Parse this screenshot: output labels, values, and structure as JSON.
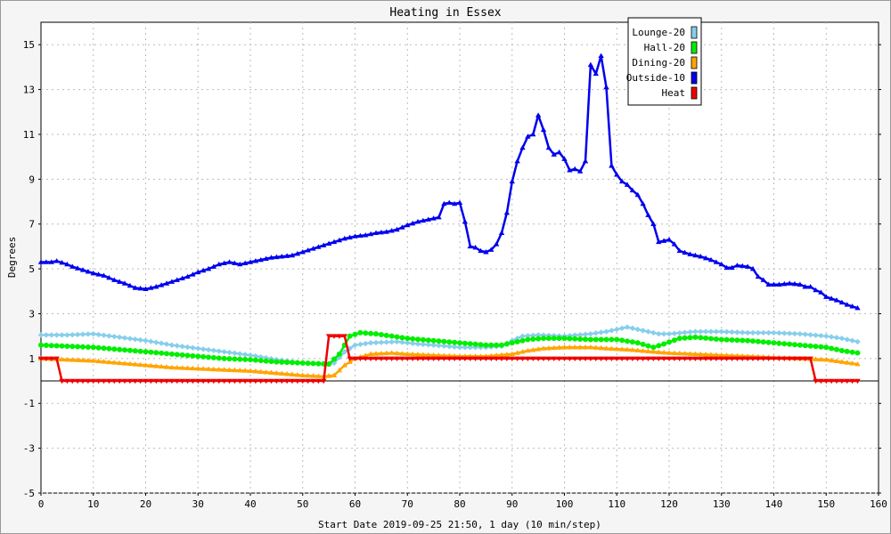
{
  "chart_data": {
    "type": "line",
    "title": "Heating in Essex",
    "xlabel": "Start Date 2019-09-25 21:50, 1 day (10 min/step)",
    "ylabel": "Degrees",
    "xlim": [
      0,
      160
    ],
    "ylim": [
      -5,
      16
    ],
    "x_ticks": [
      0,
      10,
      20,
      30,
      40,
      50,
      60,
      70,
      80,
      90,
      100,
      110,
      120,
      130,
      140,
      150,
      160
    ],
    "y_ticks": [
      -5,
      -3,
      -1,
      1,
      3,
      5,
      7,
      9,
      11,
      13,
      15
    ],
    "grid": true,
    "legend_position": "top-right",
    "series": [
      {
        "name": "Lounge-20",
        "color": "#87ceeb",
        "marker": "diamond",
        "points": [
          [
            0,
            2.05
          ],
          [
            5,
            2.05
          ],
          [
            10,
            2.1
          ],
          [
            15,
            1.95
          ],
          [
            20,
            1.8
          ],
          [
            25,
            1.6
          ],
          [
            30,
            1.45
          ],
          [
            35,
            1.3
          ],
          [
            40,
            1.15
          ],
          [
            45,
            0.95
          ],
          [
            50,
            0.8
          ],
          [
            54,
            0.75
          ],
          [
            56,
            0.8
          ],
          [
            58,
            1.3
          ],
          [
            60,
            1.6
          ],
          [
            63,
            1.7
          ],
          [
            68,
            1.75
          ],
          [
            72,
            1.65
          ],
          [
            75,
            1.6
          ],
          [
            80,
            1.5
          ],
          [
            85,
            1.5
          ],
          [
            88,
            1.55
          ],
          [
            90,
            1.8
          ],
          [
            92,
            2.0
          ],
          [
            95,
            2.05
          ],
          [
            100,
            2.0
          ],
          [
            105,
            2.1
          ],
          [
            108,
            2.2
          ],
          [
            112,
            2.4
          ],
          [
            114,
            2.3
          ],
          [
            118,
            2.1
          ],
          [
            120,
            2.1
          ],
          [
            125,
            2.2
          ],
          [
            130,
            2.2
          ],
          [
            135,
            2.15
          ],
          [
            140,
            2.15
          ],
          [
            145,
            2.1
          ],
          [
            150,
            2.0
          ],
          [
            153,
            1.9
          ],
          [
            156,
            1.75
          ]
        ]
      },
      {
        "name": "Hall-20",
        "color": "#00ee00",
        "marker": "circle",
        "points": [
          [
            0,
            1.6
          ],
          [
            5,
            1.55
          ],
          [
            10,
            1.5
          ],
          [
            15,
            1.4
          ],
          [
            20,
            1.3
          ],
          [
            25,
            1.2
          ],
          [
            30,
            1.1
          ],
          [
            35,
            1.0
          ],
          [
            40,
            0.95
          ],
          [
            45,
            0.85
          ],
          [
            50,
            0.8
          ],
          [
            55,
            0.75
          ],
          [
            57,
            1.2
          ],
          [
            58,
            1.6
          ],
          [
            59,
            2.0
          ],
          [
            61,
            2.15
          ],
          [
            64,
            2.1
          ],
          [
            70,
            1.9
          ],
          [
            75,
            1.8
          ],
          [
            80,
            1.7
          ],
          [
            85,
            1.6
          ],
          [
            88,
            1.6
          ],
          [
            90,
            1.7
          ],
          [
            93,
            1.85
          ],
          [
            96,
            1.9
          ],
          [
            100,
            1.9
          ],
          [
            105,
            1.85
          ],
          [
            110,
            1.85
          ],
          [
            114,
            1.7
          ],
          [
            117,
            1.5
          ],
          [
            119,
            1.65
          ],
          [
            122,
            1.9
          ],
          [
            125,
            1.95
          ],
          [
            130,
            1.85
          ],
          [
            135,
            1.8
          ],
          [
            140,
            1.7
          ],
          [
            145,
            1.6
          ],
          [
            150,
            1.5
          ],
          [
            153,
            1.35
          ],
          [
            156,
            1.25
          ]
        ]
      },
      {
        "name": "Dining-20",
        "color": "#ffa500",
        "marker": "triangle",
        "points": [
          [
            0,
            1.0
          ],
          [
            5,
            0.95
          ],
          [
            10,
            0.9
          ],
          [
            15,
            0.8
          ],
          [
            20,
            0.7
          ],
          [
            25,
            0.6
          ],
          [
            30,
            0.55
          ],
          [
            35,
            0.5
          ],
          [
            40,
            0.45
          ],
          [
            45,
            0.35
          ],
          [
            50,
            0.25
          ],
          [
            54,
            0.2
          ],
          [
            56,
            0.25
          ],
          [
            58,
            0.7
          ],
          [
            60,
            1.0
          ],
          [
            63,
            1.2
          ],
          [
            67,
            1.25
          ],
          [
            70,
            1.2
          ],
          [
            75,
            1.15
          ],
          [
            80,
            1.1
          ],
          [
            85,
            1.1
          ],
          [
            90,
            1.2
          ],
          [
            93,
            1.35
          ],
          [
            96,
            1.45
          ],
          [
            100,
            1.5
          ],
          [
            105,
            1.5
          ],
          [
            108,
            1.45
          ],
          [
            112,
            1.4
          ],
          [
            117,
            1.3
          ],
          [
            120,
            1.25
          ],
          [
            125,
            1.2
          ],
          [
            130,
            1.15
          ],
          [
            135,
            1.1
          ],
          [
            140,
            1.05
          ],
          [
            145,
            1.0
          ],
          [
            150,
            0.95
          ],
          [
            153,
            0.85
          ],
          [
            156,
            0.75
          ]
        ]
      },
      {
        "name": "Outside-10",
        "color": "#0000ee",
        "marker": "triangle",
        "points": [
          [
            0,
            5.3
          ],
          [
            2,
            5.3
          ],
          [
            3,
            5.35
          ],
          [
            5,
            5.2
          ],
          [
            6,
            5.1
          ],
          [
            8,
            4.95
          ],
          [
            10,
            4.8
          ],
          [
            12,
            4.7
          ],
          [
            14,
            4.5
          ],
          [
            16,
            4.35
          ],
          [
            18,
            4.15
          ],
          [
            20,
            4.1
          ],
          [
            22,
            4.2
          ],
          [
            24,
            4.35
          ],
          [
            26,
            4.5
          ],
          [
            28,
            4.65
          ],
          [
            30,
            4.85
          ],
          [
            32,
            5.0
          ],
          [
            34,
            5.2
          ],
          [
            36,
            5.3
          ],
          [
            38,
            5.2
          ],
          [
            40,
            5.3
          ],
          [
            42,
            5.4
          ],
          [
            44,
            5.5
          ],
          [
            46,
            5.55
          ],
          [
            48,
            5.6
          ],
          [
            50,
            5.75
          ],
          [
            52,
            5.9
          ],
          [
            54,
            6.05
          ],
          [
            56,
            6.2
          ],
          [
            58,
            6.35
          ],
          [
            60,
            6.45
          ],
          [
            62,
            6.5
          ],
          [
            64,
            6.6
          ],
          [
            66,
            6.65
          ],
          [
            68,
            6.75
          ],
          [
            70,
            6.95
          ],
          [
            72,
            7.1
          ],
          [
            74,
            7.2
          ],
          [
            76,
            7.3
          ],
          [
            77,
            7.9
          ],
          [
            78,
            7.95
          ],
          [
            79,
            7.9
          ],
          [
            80,
            7.95
          ],
          [
            81,
            7.1
          ],
          [
            82,
            6.0
          ],
          [
            83,
            5.95
          ],
          [
            84,
            5.8
          ],
          [
            85,
            5.75
          ],
          [
            86,
            5.85
          ],
          [
            87,
            6.1
          ],
          [
            88,
            6.6
          ],
          [
            89,
            7.5
          ],
          [
            90,
            8.9
          ],
          [
            91,
            9.8
          ],
          [
            92,
            10.4
          ],
          [
            93,
            10.9
          ],
          [
            94,
            11.0
          ],
          [
            95,
            11.85
          ],
          [
            96,
            11.2
          ],
          [
            97,
            10.4
          ],
          [
            98,
            10.1
          ],
          [
            99,
            10.2
          ],
          [
            100,
            9.9
          ],
          [
            101,
            9.4
          ],
          [
            102,
            9.45
          ],
          [
            103,
            9.35
          ],
          [
            104,
            9.8
          ],
          [
            105,
            14.1
          ],
          [
            106,
            13.7
          ],
          [
            107,
            14.5
          ],
          [
            108,
            13.1
          ],
          [
            109,
            9.6
          ],
          [
            110,
            9.2
          ],
          [
            111,
            8.9
          ],
          [
            112,
            8.75
          ],
          [
            113,
            8.5
          ],
          [
            114,
            8.3
          ],
          [
            115,
            7.9
          ],
          [
            116,
            7.4
          ],
          [
            117,
            7.0
          ],
          [
            118,
            6.2
          ],
          [
            119,
            6.25
          ],
          [
            120,
            6.3
          ],
          [
            121,
            6.1
          ],
          [
            122,
            5.8
          ],
          [
            124,
            5.65
          ],
          [
            126,
            5.55
          ],
          [
            128,
            5.4
          ],
          [
            130,
            5.2
          ],
          [
            131,
            5.05
          ],
          [
            132,
            5.05
          ],
          [
            133,
            5.15
          ],
          [
            135,
            5.1
          ],
          [
            136,
            5.0
          ],
          [
            137,
            4.65
          ],
          [
            138,
            4.5
          ],
          [
            139,
            4.3
          ],
          [
            141,
            4.3
          ],
          [
            143,
            4.35
          ],
          [
            145,
            4.3
          ],
          [
            146,
            4.2
          ],
          [
            147,
            4.2
          ],
          [
            148,
            4.05
          ],
          [
            149,
            3.95
          ],
          [
            150,
            3.75
          ],
          [
            152,
            3.6
          ],
          [
            154,
            3.4
          ],
          [
            156,
            3.25
          ]
        ]
      },
      {
        "name": "Heat",
        "color": "#ee0000",
        "marker": "triangle-down",
        "points": [
          [
            0,
            1.0
          ],
          [
            3,
            1.0
          ],
          [
            4,
            0.0
          ],
          [
            54,
            0.0
          ],
          [
            55,
            2.0
          ],
          [
            58,
            2.0
          ],
          [
            59,
            1.0
          ],
          [
            147,
            1.0
          ],
          [
            148,
            0.0
          ],
          [
            156,
            0.0
          ]
        ]
      }
    ]
  }
}
